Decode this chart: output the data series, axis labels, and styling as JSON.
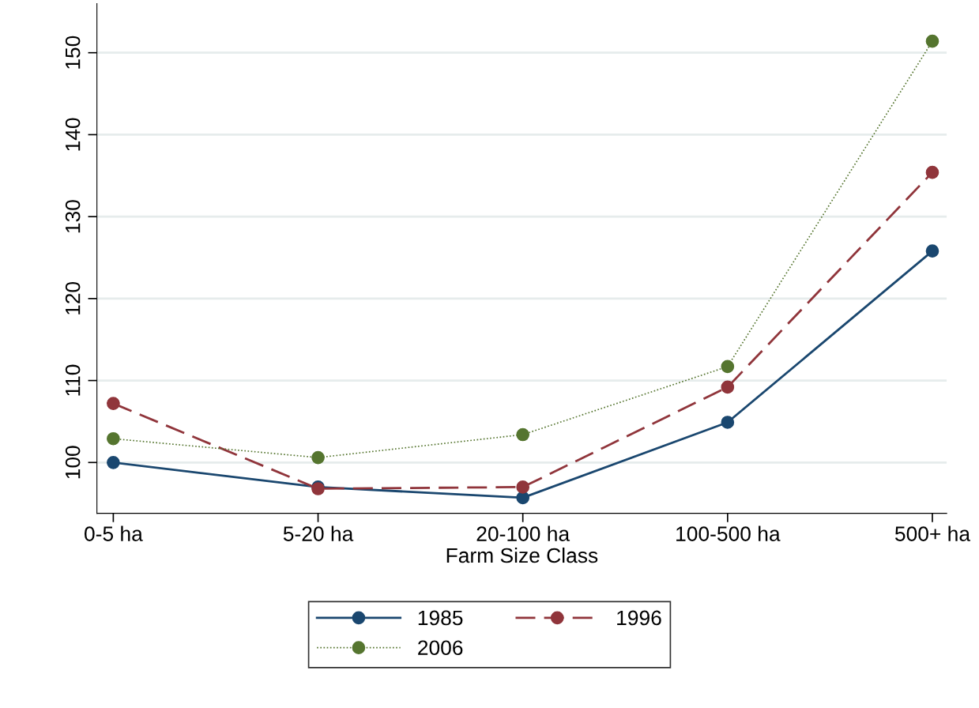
{
  "chart_data": {
    "type": "line",
    "xlabel": "Farm Size Class",
    "categories": [
      "0-5 ha",
      "5-20 ha",
      "20-100 ha",
      "100-500 ha",
      "500+ ha"
    ],
    "series": [
      {
        "name": "1985",
        "color": "#1a476f",
        "line_style": "solid",
        "values": [
          100,
          97.0,
          95.7,
          104.9,
          125.8
        ]
      },
      {
        "name": "1996",
        "color": "#90353b",
        "line_style": "dashed",
        "values": [
          107.2,
          96.8,
          97.0,
          109.2,
          135.4
        ]
      },
      {
        "name": "2006",
        "color": "#55752f",
        "line_style": "dotted",
        "values": [
          102.9,
          100.6,
          103.4,
          111.7,
          151.4
        ]
      }
    ],
    "ylim": [
      93.8,
      156
    ],
    "yticks": [
      100,
      110,
      120,
      130,
      140,
      150
    ],
    "grid": "y",
    "legend": "bottom",
    "marker": "circle"
  }
}
